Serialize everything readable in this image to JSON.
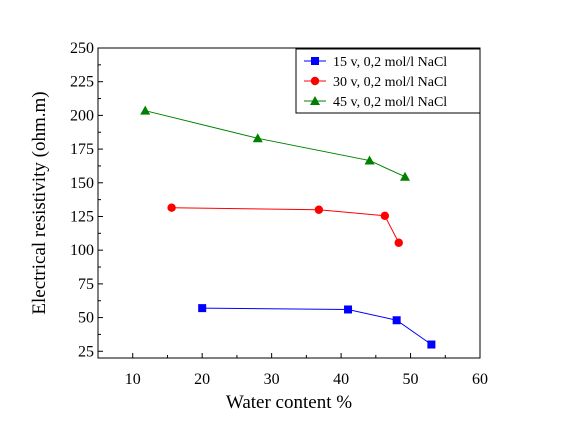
{
  "chart_data": {
    "type": "line",
    "title": "",
    "xlabel": "Water content %",
    "ylabel": "Electrical resistivity (ohm.m)",
    "xlim": [
      5,
      60
    ],
    "ylim": [
      20,
      250
    ],
    "xticks": [
      10,
      20,
      30,
      40,
      50,
      60
    ],
    "yticks": [
      25,
      50,
      75,
      100,
      125,
      150,
      175,
      200,
      225,
      250
    ],
    "grid": false,
    "legend_position": "top-right",
    "series": [
      {
        "name": "15 v, 0,2 mol/l NaCl",
        "color": "#0000ff",
        "marker": "square",
        "points": [
          [
            20,
            57
          ],
          [
            41,
            56
          ],
          [
            48,
            48
          ],
          [
            53,
            30
          ]
        ]
      },
      {
        "name": "30 v, 0,2 mol/l NaCl",
        "color": "#ff0000",
        "marker": "circle",
        "points": [
          [
            15.6,
            131.5
          ],
          [
            36.8,
            130
          ],
          [
            46.3,
            125.5
          ],
          [
            48.3,
            105.5
          ]
        ]
      },
      {
        "name": "45 v, 0,2 mol/l NaCl",
        "color": "#008000",
        "marker": "triangle",
        "points": [
          [
            11.8,
            203.5
          ],
          [
            28,
            183
          ],
          [
            44.1,
            166.5
          ],
          [
            49.2,
            154.5
          ]
        ]
      }
    ]
  }
}
